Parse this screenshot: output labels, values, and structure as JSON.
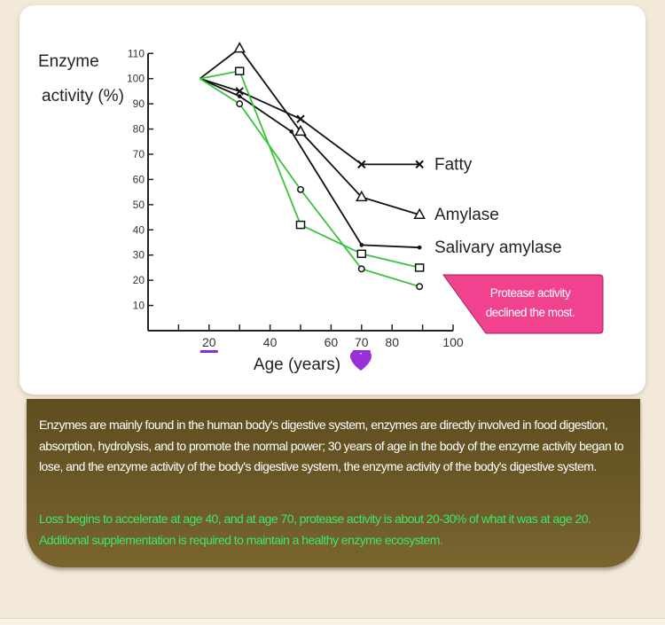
{
  "chart_data": {
    "type": "line",
    "ylabel": [
      "Enzyme",
      "activity (%)"
    ],
    "xlabel": "Age (years)",
    "xlim": [
      0,
      100
    ],
    "ylim": [
      0,
      110
    ],
    "yticks": [
      10,
      20,
      30,
      40,
      50,
      60,
      70,
      80,
      90,
      100,
      110
    ],
    "xticks_minor": [
      10,
      20,
      30,
      40,
      50,
      60,
      70,
      80,
      90,
      100
    ],
    "xtick_labels": [
      {
        "value": 20,
        "label": "20",
        "underlined": true
      },
      {
        "value": 40,
        "label": "40"
      },
      {
        "value": 60,
        "label": "60"
      },
      {
        "value": 70,
        "label": "70",
        "underlined": true
      },
      {
        "value": 80,
        "label": "80"
      },
      {
        "value": 100,
        "label": "100"
      }
    ],
    "grid": false,
    "series": [
      {
        "name": "Fatty",
        "color": "#111111",
        "marker": "x",
        "x": [
          17,
          30,
          50,
          70,
          89
        ],
        "y": [
          100,
          95,
          84,
          66,
          66
        ]
      },
      {
        "name": "Amylase",
        "color": "#111111",
        "marker": "triangle",
        "x": [
          17,
          30,
          50,
          70,
          89
        ],
        "y": [
          100,
          112,
          79,
          53,
          46
        ]
      },
      {
        "name": "Salivary amylase",
        "color": "#111111",
        "marker": "dot",
        "x": [
          17,
          30,
          47,
          70,
          89
        ],
        "y": [
          100,
          93,
          79,
          34,
          33
        ]
      },
      {
        "color": "#3cc23c",
        "marker": "square",
        "x": [
          17,
          30,
          50,
          70,
          89
        ],
        "y": [
          100,
          103,
          42,
          30.5,
          25
        ]
      },
      {
        "color": "#3cc23c",
        "marker": "circle",
        "x": [
          17,
          30,
          50,
          70,
          89
        ],
        "y": [
          100,
          90,
          56,
          24.5,
          17.5
        ]
      }
    ],
    "annotation": [
      "Protease activity",
      "declined the most."
    ],
    "colors": {
      "callout": "#f0428e",
      "underline": "#8a2be2",
      "heart": "#9b30d9"
    }
  },
  "text": {
    "paragraph1": "Enzymes are mainly found in the human body's digestive system, enzymes are directly involved in food digestion, absorption, hydrolysis, and to promote the normal power; 30 years of age in the body of the enzyme activity began to lose, and the enzyme activity of the body's digestive system, the enzyme activity of the body's digestive system.",
    "paragraph2": "Loss begins to accelerate at age 40, and at age 70, protease activity is about 20-30% of what it was at age 20. Additional supplementation is required to maintain a healthy enzyme ecosystem."
  }
}
